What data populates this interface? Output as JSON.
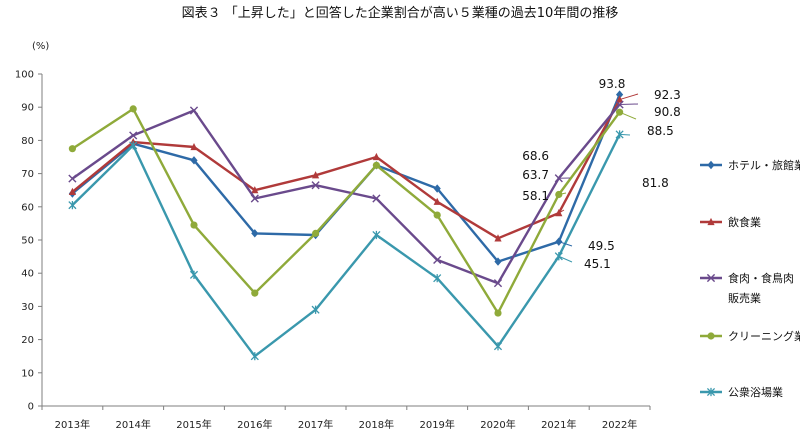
{
  "chart_data": {
    "type": "line",
    "title": "図表３ 「上昇した」と回答した企業割合が高い５業種の過去10年間の推移",
    "ylabel": "(%)",
    "xlabel": "",
    "ylim": [
      0,
      100
    ],
    "yticks": [
      0,
      10,
      20,
      30,
      40,
      50,
      60,
      70,
      80,
      90,
      100
    ],
    "grid": false,
    "legend_position": "right",
    "categories": [
      "2013年",
      "2014年",
      "2015年",
      "2016年",
      "2017年",
      "2018年",
      "2019年",
      "2020年",
      "2021年",
      "2022年"
    ],
    "series": [
      {
        "name": "ホテル・旅館業",
        "color": "#2e6aa7",
        "marker": "diamond",
        "values": [
          64,
          79,
          74,
          52,
          51.5,
          72.5,
          65.5,
          43.5,
          49.5,
          93.8
        ]
      },
      {
        "name": "飲食業",
        "color": "#b03a3a",
        "marker": "triangle",
        "values": [
          64.5,
          79.5,
          78,
          65,
          69.5,
          75,
          61.5,
          50.5,
          58.1,
          92.3
        ]
      },
      {
        "name": "食肉・食鳥肉販売業",
        "name_lines": [
          "食肉・食鳥肉",
          "販売業"
        ],
        "color": "#6a4a8c",
        "marker": "x",
        "values": [
          68.5,
          81.5,
          89,
          62.5,
          66.5,
          62.5,
          44,
          37,
          68.6,
          90.8
        ]
      },
      {
        "name": "クリーニング業",
        "color": "#8faa3a",
        "marker": "circle",
        "values": [
          77.5,
          89.5,
          54.5,
          34,
          52,
          72.5,
          57.5,
          28,
          63.7,
          88.5
        ]
      },
      {
        "name": "公衆浴場業",
        "color": "#3a98ad",
        "marker": "asterisk",
        "values": [
          60.5,
          78.5,
          39.5,
          15,
          29,
          51.5,
          38.5,
          18,
          45.1,
          81.8
        ]
      }
    ],
    "data_labels": [
      {
        "text": "93.8",
        "value": 93.8,
        "series": 0
      },
      {
        "text": "92.3",
        "value": 92.3,
        "series": 1
      },
      {
        "text": "90.8",
        "value": 90.8,
        "series": 2
      },
      {
        "text": "88.5",
        "value": 88.5,
        "series": 3
      },
      {
        "text": "81.8",
        "value": 81.8,
        "series": 4
      },
      {
        "text": "68.6",
        "value": 68.6,
        "series": 2
      },
      {
        "text": "63.7",
        "value": 63.7,
        "series": 3
      },
      {
        "text": "58.1",
        "value": 58.1,
        "series": 1
      },
      {
        "text": "49.5",
        "value": 49.5,
        "series": 0
      },
      {
        "text": "45.1",
        "value": 45.1,
        "series": 4
      }
    ]
  }
}
